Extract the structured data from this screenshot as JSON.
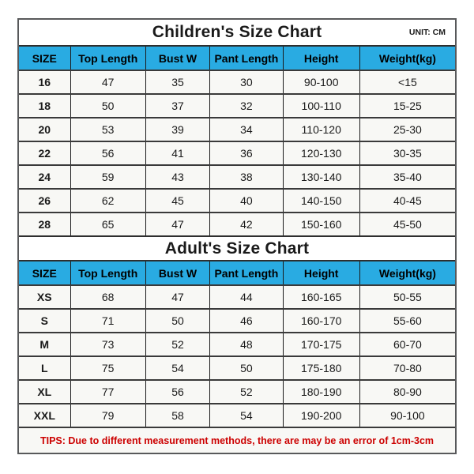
{
  "unit_label": "UNIT: CM",
  "children_chart": {
    "title": "Children's Size Chart",
    "columns": [
      "SIZE",
      "Top Length",
      "Bust W",
      "Pant Length",
      "Height",
      "Weight(kg)"
    ],
    "rows": [
      [
        "16",
        "47",
        "35",
        "30",
        "90-100",
        "<15"
      ],
      [
        "18",
        "50",
        "37",
        "32",
        "100-110",
        "15-25"
      ],
      [
        "20",
        "53",
        "39",
        "34",
        "110-120",
        "25-30"
      ],
      [
        "22",
        "56",
        "41",
        "36",
        "120-130",
        "30-35"
      ],
      [
        "24",
        "59",
        "43",
        "38",
        "130-140",
        "35-40"
      ],
      [
        "26",
        "62",
        "45",
        "40",
        "140-150",
        "40-45"
      ],
      [
        "28",
        "65",
        "47",
        "42",
        "150-160",
        "45-50"
      ]
    ]
  },
  "adult_chart": {
    "title": "Adult's Size Chart",
    "columns": [
      "SIZE",
      "Top Length",
      "Bust W",
      "Pant Length",
      "Height",
      "Weight(kg)"
    ],
    "rows": [
      [
        "XS",
        "68",
        "47",
        "44",
        "160-165",
        "50-55"
      ],
      [
        "S",
        "71",
        "50",
        "46",
        "160-170",
        "55-60"
      ],
      [
        "M",
        "73",
        "52",
        "48",
        "170-175",
        "60-70"
      ],
      [
        "L",
        "75",
        "54",
        "50",
        "175-180",
        "70-80"
      ],
      [
        "XL",
        "77",
        "56",
        "52",
        "180-190",
        "80-90"
      ],
      [
        "XXL",
        "79",
        "58",
        "54",
        "190-200",
        "90-100"
      ]
    ]
  },
  "tips": "TIPS: Due to different measurement methods, there are may be an error of 1cm-3cm",
  "colors": {
    "header_bg": "#29abe2",
    "tips_text": "#cc0000",
    "grid_line": "#1b1b1b",
    "outer_border": "#58595b",
    "cell_bg": "#f8f8f5"
  }
}
